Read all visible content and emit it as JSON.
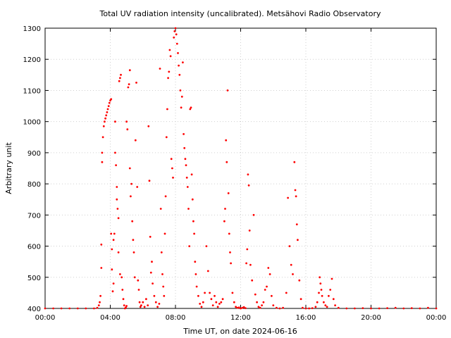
{
  "chart_data": {
    "type": "scatter",
    "title": "Total UV radiation intensity (uncalibrated). Metsähovi Radio Observatory",
    "xlabel": "Time UT, on date 2024-06-16",
    "ylabel": "Arbitrary unit",
    "xlim": [
      0,
      24
    ],
    "ylim": [
      400,
      1300
    ],
    "x_unit": "hours UT",
    "x_ticks": [
      {
        "value": 0,
        "label": "00:00"
      },
      {
        "value": 4,
        "label": "04:00"
      },
      {
        "value": 8,
        "label": "08:00"
      },
      {
        "value": 12,
        "label": "12:00"
      },
      {
        "value": 16,
        "label": "16:00"
      },
      {
        "value": 20,
        "label": "20:00"
      },
      {
        "value": 24,
        "label": "00:00"
      }
    ],
    "y_ticks": [
      400,
      500,
      600,
      700,
      800,
      900,
      1000,
      1100,
      1200,
      1300
    ],
    "grid": true,
    "marker_color": "#ff0000",
    "series": [
      {
        "points": [
          [
            0.0,
            400
          ],
          [
            0.5,
            400
          ],
          [
            1.0,
            400
          ],
          [
            1.5,
            400
          ],
          [
            2.0,
            400
          ],
          [
            2.5,
            400
          ],
          [
            3.0,
            400
          ],
          [
            3.2,
            402
          ],
          [
            3.3,
            410
          ],
          [
            3.35,
            420
          ],
          [
            3.4,
            440
          ],
          [
            3.45,
            605
          ],
          [
            3.45,
            530
          ],
          [
            3.5,
            870
          ],
          [
            3.5,
            900
          ],
          [
            3.55,
            950
          ],
          [
            3.6,
            985
          ],
          [
            3.65,
            1000
          ],
          [
            3.7,
            1010
          ],
          [
            3.75,
            1020
          ],
          [
            3.8,
            1030
          ],
          [
            3.85,
            1040
          ],
          [
            3.9,
            1050
          ],
          [
            3.95,
            1060
          ],
          [
            4.0,
            1068
          ],
          [
            4.05,
            1072
          ],
          [
            4.05,
            640
          ],
          [
            4.1,
            590
          ],
          [
            4.1,
            525
          ],
          [
            4.15,
            455
          ],
          [
            4.2,
            480
          ],
          [
            4.2,
            620
          ],
          [
            4.25,
            640
          ],
          [
            4.3,
            1000
          ],
          [
            4.3,
            900
          ],
          [
            4.35,
            860
          ],
          [
            4.4,
            790
          ],
          [
            4.4,
            750
          ],
          [
            4.45,
            720
          ],
          [
            4.5,
            690
          ],
          [
            4.5,
            580
          ],
          [
            4.55,
            1130
          ],
          [
            4.6,
            1140
          ],
          [
            4.6,
            510
          ],
          [
            4.65,
            1150
          ],
          [
            4.7,
            500
          ],
          [
            4.75,
            460
          ],
          [
            4.8,
            430
          ],
          [
            4.85,
            410
          ],
          [
            4.9,
            400
          ],
          [
            4.95,
            403
          ],
          [
            5.0,
            408
          ],
          [
            5.0,
            1000
          ],
          [
            5.05,
            975
          ],
          [
            5.1,
            1110
          ],
          [
            5.15,
            1120
          ],
          [
            5.2,
            1165
          ],
          [
            5.2,
            850
          ],
          [
            5.25,
            760
          ],
          [
            5.3,
            800
          ],
          [
            5.35,
            680
          ],
          [
            5.4,
            620
          ],
          [
            5.45,
            580
          ],
          [
            5.5,
            500
          ],
          [
            5.55,
            940
          ],
          [
            5.6,
            1125
          ],
          [
            5.65,
            790
          ],
          [
            5.7,
            490
          ],
          [
            5.75,
            460
          ],
          [
            5.8,
            420
          ],
          [
            5.85,
            405
          ],
          [
            5.9,
            410
          ],
          [
            6.0,
            420
          ],
          [
            6.1,
            405
          ],
          [
            6.2,
            430
          ],
          [
            6.3,
            410
          ],
          [
            6.35,
            985
          ],
          [
            6.4,
            810
          ],
          [
            6.45,
            630
          ],
          [
            6.5,
            515
          ],
          [
            6.55,
            550
          ],
          [
            6.6,
            480
          ],
          [
            6.7,
            440
          ],
          [
            6.8,
            420
          ],
          [
            6.9,
            405
          ],
          [
            7.0,
            415
          ],
          [
            7.05,
            1170
          ],
          [
            7.1,
            720
          ],
          [
            7.15,
            580
          ],
          [
            7.2,
            510
          ],
          [
            7.25,
            470
          ],
          [
            7.3,
            440
          ],
          [
            7.35,
            640
          ],
          [
            7.4,
            760
          ],
          [
            7.45,
            950
          ],
          [
            7.5,
            1040
          ],
          [
            7.55,
            1140
          ],
          [
            7.6,
            1160
          ],
          [
            7.65,
            1230
          ],
          [
            7.7,
            1210
          ],
          [
            7.75,
            880
          ],
          [
            7.8,
            850
          ],
          [
            7.85,
            820
          ],
          [
            7.9,
            1270
          ],
          [
            7.95,
            1290
          ],
          [
            8.0,
            1300
          ],
          [
            8.05,
            1280
          ],
          [
            8.1,
            1250
          ],
          [
            8.15,
            1220
          ],
          [
            8.2,
            1180
          ],
          [
            8.25,
            1150
          ],
          [
            8.3,
            1100
          ],
          [
            8.35,
            1045
          ],
          [
            8.4,
            1080
          ],
          [
            8.45,
            1190
          ],
          [
            8.5,
            960
          ],
          [
            8.55,
            915
          ],
          [
            8.6,
            880
          ],
          [
            8.65,
            860
          ],
          [
            8.7,
            820
          ],
          [
            8.75,
            790
          ],
          [
            8.8,
            720
          ],
          [
            8.85,
            600
          ],
          [
            8.9,
            1040
          ],
          [
            8.95,
            1045
          ],
          [
            9.0,
            830
          ],
          [
            9.05,
            750
          ],
          [
            9.1,
            680
          ],
          [
            9.15,
            640
          ],
          [
            9.2,
            550
          ],
          [
            9.25,
            510
          ],
          [
            9.3,
            470
          ],
          [
            9.4,
            440
          ],
          [
            9.5,
            415
          ],
          [
            9.6,
            405
          ],
          [
            9.7,
            420
          ],
          [
            9.8,
            450
          ],
          [
            9.9,
            600
          ],
          [
            10.0,
            520
          ],
          [
            10.1,
            450
          ],
          [
            10.2,
            430
          ],
          [
            10.3,
            410
          ],
          [
            10.4,
            440
          ],
          [
            10.5,
            420
          ],
          [
            10.6,
            405
          ],
          [
            10.7,
            415
          ],
          [
            10.8,
            420
          ],
          [
            10.9,
            430
          ],
          [
            11.0,
            680
          ],
          [
            11.05,
            720
          ],
          [
            11.1,
            940
          ],
          [
            11.15,
            870
          ],
          [
            11.2,
            1100
          ],
          [
            11.25,
            770
          ],
          [
            11.3,
            640
          ],
          [
            11.35,
            580
          ],
          [
            11.4,
            545
          ],
          [
            11.5,
            450
          ],
          [
            11.6,
            420
          ],
          [
            11.7,
            405
          ],
          [
            11.8,
            402
          ],
          [
            11.9,
            403
          ],
          [
            12.0,
            400
          ],
          [
            12.1,
            402
          ],
          [
            12.2,
            404
          ],
          [
            12.3,
            401
          ],
          [
            12.35,
            545
          ],
          [
            12.4,
            590
          ],
          [
            12.45,
            830
          ],
          [
            12.5,
            795
          ],
          [
            12.55,
            650
          ],
          [
            12.6,
            540
          ],
          [
            12.7,
            490
          ],
          [
            12.8,
            700
          ],
          [
            12.9,
            445
          ],
          [
            13.0,
            420
          ],
          [
            13.1,
            405
          ],
          [
            13.2,
            402
          ],
          [
            13.3,
            410
          ],
          [
            13.4,
            420
          ],
          [
            13.5,
            460
          ],
          [
            13.6,
            470
          ],
          [
            13.7,
            530
          ],
          [
            13.8,
            510
          ],
          [
            13.9,
            440
          ],
          [
            14.0,
            410
          ],
          [
            14.2,
            402
          ],
          [
            14.4,
            400
          ],
          [
            14.6,
            402
          ],
          [
            14.8,
            450
          ],
          [
            14.9,
            755
          ],
          [
            15.0,
            600
          ],
          [
            15.1,
            540
          ],
          [
            15.2,
            510
          ],
          [
            15.3,
            870
          ],
          [
            15.35,
            780
          ],
          [
            15.4,
            760
          ],
          [
            15.45,
            670
          ],
          [
            15.5,
            620
          ],
          [
            15.6,
            490
          ],
          [
            15.7,
            430
          ],
          [
            15.8,
            402
          ],
          [
            16.0,
            400
          ],
          [
            16.2,
            400
          ],
          [
            16.4,
            401
          ],
          [
            16.6,
            405
          ],
          [
            16.7,
            420
          ],
          [
            16.8,
            450
          ],
          [
            16.85,
            500
          ],
          [
            16.9,
            480
          ],
          [
            16.95,
            460
          ],
          [
            17.0,
            440
          ],
          [
            17.1,
            420
          ],
          [
            17.2,
            410
          ],
          [
            17.3,
            405
          ],
          [
            17.4,
            440
          ],
          [
            17.5,
            460
          ],
          [
            17.6,
            495
          ],
          [
            17.7,
            430
          ],
          [
            17.8,
            410
          ],
          [
            18.0,
            402
          ],
          [
            18.5,
            400
          ],
          [
            19.0,
            400
          ],
          [
            19.5,
            401
          ],
          [
            20.0,
            400
          ],
          [
            20.5,
            400
          ],
          [
            21.0,
            401
          ],
          [
            21.5,
            402
          ],
          [
            22.0,
            400
          ],
          [
            22.5,
            401
          ],
          [
            23.0,
            400
          ],
          [
            23.5,
            402
          ],
          [
            24.0,
            400
          ]
        ]
      }
    ]
  }
}
